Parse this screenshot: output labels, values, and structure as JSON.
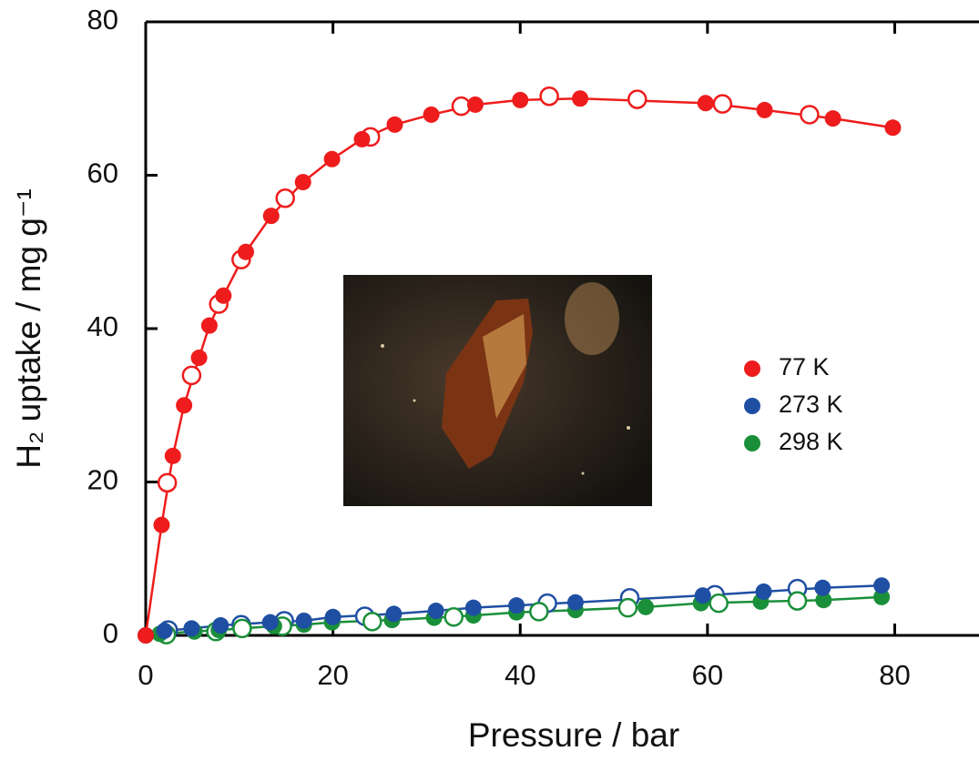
{
  "chart_data": {
    "type": "scatter",
    "xlabel": "Pressure / bar",
    "ylabel": "H₂ uptake / mg g⁻¹",
    "xlim": [
      0,
      89
    ],
    "ylim": [
      0,
      80
    ],
    "xticks": [
      0,
      20,
      40,
      60,
      80
    ],
    "yticks": [
      0,
      20,
      40,
      60,
      80
    ],
    "legend": "right",
    "series": [
      {
        "name": "77 K",
        "color": "#ee1c1c",
        "x": [
          0,
          1.7,
          2.9,
          4.1,
          5.7,
          6.8,
          8.3,
          10.7,
          13.4,
          16.8,
          19.9,
          23.1,
          26.6,
          30.5,
          35.2,
          40.0,
          46.4,
          59.8,
          66.1,
          73.4,
          79.8
        ],
        "values": [
          0,
          14.4,
          23.4,
          30.0,
          36.2,
          40.4,
          44.3,
          50.0,
          54.7,
          59.1,
          62.1,
          64.7,
          66.6,
          67.9,
          69.2,
          69.8,
          70.0,
          69.4,
          68.5,
          67.4,
          66.2
        ],
        "desorption_x": [
          2.3,
          4.9,
          7.8,
          10.2,
          14.9,
          24.0,
          33.7,
          43.1,
          52.5,
          61.6,
          70.9
        ],
        "desorption_values": [
          19.9,
          33.9,
          43.2,
          49.0,
          57.0,
          65.0,
          69.0,
          70.3,
          69.9,
          69.3,
          67.9
        ]
      },
      {
        "name": "273 K",
        "color": "#1f4fa3",
        "x": [
          0,
          2.0,
          4.9,
          8.0,
          13.3,
          16.9,
          20.0,
          26.5,
          31.0,
          35.0,
          39.6,
          45.9,
          59.5,
          66.0,
          72.3,
          78.6
        ],
        "values": [
          0,
          0.6,
          0.9,
          1.3,
          1.7,
          1.9,
          2.4,
          2.8,
          3.2,
          3.6,
          3.9,
          4.3,
          5.2,
          5.7,
          6.2,
          6.5
        ],
        "desorption_x": [
          2.4,
          10.2,
          14.8,
          23.4,
          42.9,
          51.7,
          60.8,
          69.6
        ],
        "desorption_values": [
          0.7,
          1.4,
          1.9,
          2.5,
          4.2,
          4.9,
          5.3,
          6.1
        ]
      },
      {
        "name": "298 K",
        "color": "#1a8f3a",
        "x": [
          0,
          1.5,
          5.2,
          7.8,
          13.7,
          16.9,
          19.9,
          26.3,
          30.8,
          35.0,
          39.6,
          45.9,
          53.4,
          59.3,
          65.7,
          72.4,
          78.6
        ],
        "values": [
          0,
          0.2,
          0.5,
          0.7,
          1.2,
          1.4,
          1.7,
          2.0,
          2.3,
          2.6,
          3.0,
          3.3,
          3.7,
          4.2,
          4.4,
          4.6,
          5.0
        ],
        "desorption_x": [
          2.2,
          7.5,
          10.3,
          14.6,
          24.2,
          32.9,
          42.0,
          51.5,
          61.2,
          69.6
        ],
        "desorption_values": [
          0.1,
          0.5,
          0.9,
          1.2,
          1.8,
          2.4,
          3.1,
          3.6,
          4.2,
          4.5
        ]
      }
    ]
  }
}
